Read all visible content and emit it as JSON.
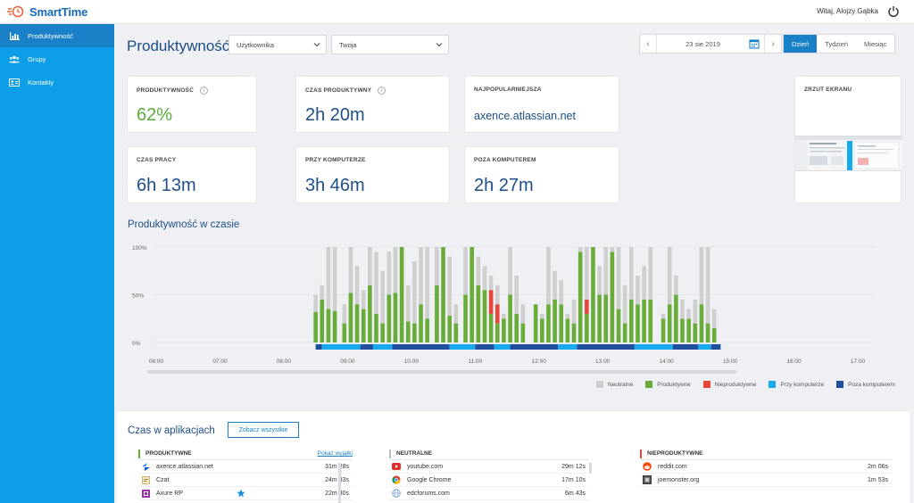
{
  "app": {
    "name": "SmartTime",
    "welcome": "Witaj, Alojzy Gąbka"
  },
  "sidebar": {
    "items": [
      {
        "label": "Produktywność",
        "icon": "bar-chart-icon",
        "active": true
      },
      {
        "label": "Grupy",
        "icon": "group-icon",
        "active": false
      },
      {
        "label": "Kontakty",
        "icon": "contact-card-icon",
        "active": false
      }
    ]
  },
  "header": {
    "title": "Produktywność",
    "select_scope": "Użytkownika",
    "select_user": "Twoja",
    "date": "23 sie 2019",
    "periods": [
      "Dzień",
      "Tydzień",
      "Miesiąc"
    ],
    "active_period": "Dzień"
  },
  "kpis": {
    "productivity": {
      "label": "PRODUKTYWNOŚĆ",
      "value": "62%"
    },
    "productive_time": {
      "label": "CZAS PRODUKTYWNY",
      "value": "2h 20m"
    },
    "most_popular": {
      "label": "NAJPOPULARNIEJSZA",
      "value": "axence.atlassian.net"
    },
    "work_time": {
      "label": "CZAS PRACY",
      "value": "6h 13m"
    },
    "at_computer": {
      "label": "PRZY KOMPUTERZE",
      "value": "3h 46m"
    },
    "away_computer": {
      "label": "POZA KOMPUTEREM",
      "value": "2h 27m"
    },
    "screenshot": {
      "label": "ZRZUT EKRANU"
    }
  },
  "chart_title": "Produktywność w czasie",
  "chart_data": {
    "type": "bar",
    "y_ticks": [
      "100%",
      "50%",
      "0%"
    ],
    "x_ticks": [
      "06:00",
      "07:00",
      "08:00",
      "09:00",
      "10:00",
      "11:00",
      "12:00",
      "13:00",
      "14:00",
      "15:00",
      "16:00",
      "17:00"
    ],
    "ylim": [
      0,
      100
    ],
    "colors": {
      "neutral": "#cfcfcf",
      "productive": "#6aac3a",
      "unproductive": "#e8453c",
      "at_computer": "#18a9ef",
      "away": "#1f4f9e"
    },
    "bars": [
      {
        "x": 8.5,
        "total": 50,
        "productive": 32,
        "unproductive": 0
      },
      {
        "x": 8.6,
        "total": 60,
        "productive": 45,
        "unproductive": 0
      },
      {
        "x": 8.7,
        "total": 100,
        "productive": 35,
        "unproductive": 0
      },
      {
        "x": 8.8,
        "total": 100,
        "productive": 33,
        "unproductive": 0
      },
      {
        "x": 8.95,
        "total": 40,
        "productive": 20,
        "unproductive": 0
      },
      {
        "x": 9.05,
        "total": 100,
        "productive": 52,
        "unproductive": 0
      },
      {
        "x": 9.15,
        "total": 80,
        "productive": 40,
        "unproductive": 0
      },
      {
        "x": 9.25,
        "total": 55,
        "productive": 35,
        "unproductive": 0
      },
      {
        "x": 9.35,
        "total": 100,
        "productive": 60,
        "unproductive": 0
      },
      {
        "x": 9.45,
        "total": 95,
        "productive": 30,
        "unproductive": 0
      },
      {
        "x": 9.55,
        "total": 75,
        "productive": 20,
        "unproductive": 0
      },
      {
        "x": 9.65,
        "total": 95,
        "productive": 50,
        "unproductive": 0
      },
      {
        "x": 9.75,
        "total": 100,
        "productive": 52,
        "unproductive": 0
      },
      {
        "x": 9.85,
        "total": 100,
        "productive": 100,
        "unproductive": 0
      },
      {
        "x": 9.95,
        "total": 60,
        "productive": 22,
        "unproductive": 0
      },
      {
        "x": 10.05,
        "total": 85,
        "productive": 20,
        "unproductive": 0
      },
      {
        "x": 10.15,
        "total": 100,
        "productive": 40,
        "unproductive": 0
      },
      {
        "x": 10.25,
        "total": 100,
        "productive": 25,
        "unproductive": 0
      },
      {
        "x": 10.4,
        "total": 100,
        "productive": 60,
        "unproductive": 0
      },
      {
        "x": 10.5,
        "total": 100,
        "productive": 100,
        "unproductive": 0
      },
      {
        "x": 10.6,
        "total": 90,
        "productive": 28,
        "unproductive": 0
      },
      {
        "x": 10.7,
        "total": 40,
        "productive": 20,
        "unproductive": 0
      },
      {
        "x": 10.85,
        "total": 100,
        "productive": 50,
        "unproductive": 0
      },
      {
        "x": 10.95,
        "total": 100,
        "productive": 100,
        "unproductive": 0
      },
      {
        "x": 11.05,
        "total": 90,
        "productive": 60,
        "unproductive": 0
      },
      {
        "x": 11.15,
        "total": 80,
        "productive": 55,
        "unproductive": 0
      },
      {
        "x": 11.25,
        "total": 70,
        "productive": 30,
        "unproductive": 25
      },
      {
        "x": 11.35,
        "total": 60,
        "productive": 20,
        "unproductive": 20
      },
      {
        "x": 11.45,
        "total": 30,
        "productive": 25,
        "unproductive": 0
      },
      {
        "x": 11.55,
        "total": 100,
        "productive": 50,
        "unproductive": 0
      },
      {
        "x": 11.65,
        "total": 70,
        "productive": 30,
        "unproductive": 0
      },
      {
        "x": 11.75,
        "total": 40,
        "productive": 20,
        "unproductive": 0
      },
      {
        "x": 11.95,
        "total": 40,
        "productive": 40,
        "unproductive": 0
      },
      {
        "x": 12.05,
        "total": 30,
        "productive": 25,
        "unproductive": 0
      },
      {
        "x": 12.15,
        "total": 100,
        "productive": 40,
        "unproductive": 0
      },
      {
        "x": 12.25,
        "total": 75,
        "productive": 45,
        "unproductive": 0
      },
      {
        "x": 12.35,
        "total": 65,
        "productive": 40,
        "unproductive": 0
      },
      {
        "x": 12.45,
        "total": 30,
        "productive": 25,
        "unproductive": 0
      },
      {
        "x": 12.55,
        "total": 45,
        "productive": 20,
        "unproductive": 0
      },
      {
        "x": 12.65,
        "total": 100,
        "productive": 95,
        "unproductive": 0
      },
      {
        "x": 12.75,
        "total": 100,
        "productive": 30,
        "unproductive": 15
      },
      {
        "x": 12.85,
        "total": 100,
        "productive": 100,
        "unproductive": 0
      },
      {
        "x": 12.95,
        "total": 80,
        "productive": 50,
        "unproductive": 0
      },
      {
        "x": 13.05,
        "total": 100,
        "productive": 50,
        "unproductive": 0
      },
      {
        "x": 13.15,
        "total": 100,
        "productive": 95,
        "unproductive": 0
      },
      {
        "x": 13.25,
        "total": 100,
        "productive": 35,
        "unproductive": 0
      },
      {
        "x": 13.35,
        "total": 60,
        "productive": 20,
        "unproductive": 0
      },
      {
        "x": 13.45,
        "total": 100,
        "productive": 45,
        "unproductive": 0
      },
      {
        "x": 13.55,
        "total": 70,
        "productive": 40,
        "unproductive": 0
      },
      {
        "x": 13.65,
        "total": 80,
        "productive": 45,
        "unproductive": 0
      },
      {
        "x": 13.75,
        "total": 100,
        "productive": 45,
        "unproductive": 0
      },
      {
        "x": 13.95,
        "total": 30,
        "productive": 25,
        "unproductive": 0
      },
      {
        "x": 14.05,
        "total": 100,
        "productive": 40,
        "unproductive": 0
      },
      {
        "x": 14.15,
        "total": 70,
        "productive": 50,
        "unproductive": 0
      },
      {
        "x": 14.25,
        "total": 45,
        "productive": 25,
        "unproductive": 0
      },
      {
        "x": 14.35,
        "total": 35,
        "productive": 25,
        "unproductive": 0
      },
      {
        "x": 14.45,
        "total": 45,
        "productive": 20,
        "unproductive": 0
      },
      {
        "x": 14.55,
        "total": 100,
        "productive": 40,
        "unproductive": 0
      },
      {
        "x": 14.65,
        "total": 100,
        "productive": 20,
        "unproductive": 0
      },
      {
        "x": 14.75,
        "total": 35,
        "productive": 15,
        "unproductive": 0
      }
    ],
    "timeline": {
      "start": 8.5,
      "end": 14.85
    },
    "timeline_segments": [
      {
        "from": 8.5,
        "to": 8.6,
        "type": "away"
      },
      {
        "from": 8.6,
        "to": 9.2,
        "type": "at_computer"
      },
      {
        "from": 9.2,
        "to": 9.4,
        "type": "away"
      },
      {
        "from": 9.4,
        "to": 9.7,
        "type": "at_computer"
      },
      {
        "from": 9.7,
        "to": 10.6,
        "type": "away"
      },
      {
        "from": 10.6,
        "to": 11.0,
        "type": "at_computer"
      },
      {
        "from": 11.0,
        "to": 11.3,
        "type": "away"
      },
      {
        "from": 11.3,
        "to": 11.55,
        "type": "at_computer"
      },
      {
        "from": 11.55,
        "to": 12.3,
        "type": "away"
      },
      {
        "from": 12.3,
        "to": 12.6,
        "type": "at_computer"
      },
      {
        "from": 12.6,
        "to": 13.5,
        "type": "away"
      },
      {
        "from": 13.5,
        "to": 14.1,
        "type": "at_computer"
      },
      {
        "from": 14.1,
        "to": 14.5,
        "type": "away"
      },
      {
        "from": 14.5,
        "to": 14.7,
        "type": "at_computer"
      },
      {
        "from": 14.7,
        "to": 14.85,
        "type": "away"
      }
    ]
  },
  "legend": [
    "Neutralne",
    "Produktywne",
    "Nieproduktywne",
    "Przy komputerze",
    "Poza komputerem"
  ],
  "apps": {
    "title": "Czas w aplikacjach",
    "see_all": "Zobacz wszystkie",
    "productive": {
      "head": "PRODUKTYWNE",
      "link": "Pokaż wyjątki",
      "rows": [
        {
          "name": "axence.atlassian.net",
          "time": "31m 28s"
        },
        {
          "name": "Czat",
          "time": "24m 33s"
        },
        {
          "name": "Axure RP",
          "time": "22m 30s"
        }
      ]
    },
    "neutral": {
      "head": "NEUTRALNE",
      "rows": [
        {
          "name": "youtube.com",
          "time": "29m 12s"
        },
        {
          "name": "Google Chrome",
          "time": "17m 10s"
        },
        {
          "name": "edcforums.com",
          "time": "6m 43s"
        }
      ]
    },
    "unproductive": {
      "head": "NIEPRODUKTYWNE",
      "rows": [
        {
          "name": "reddit.com",
          "time": "2m 06s"
        },
        {
          "name": "joemonster.org",
          "time": "1m 53s"
        }
      ]
    }
  }
}
